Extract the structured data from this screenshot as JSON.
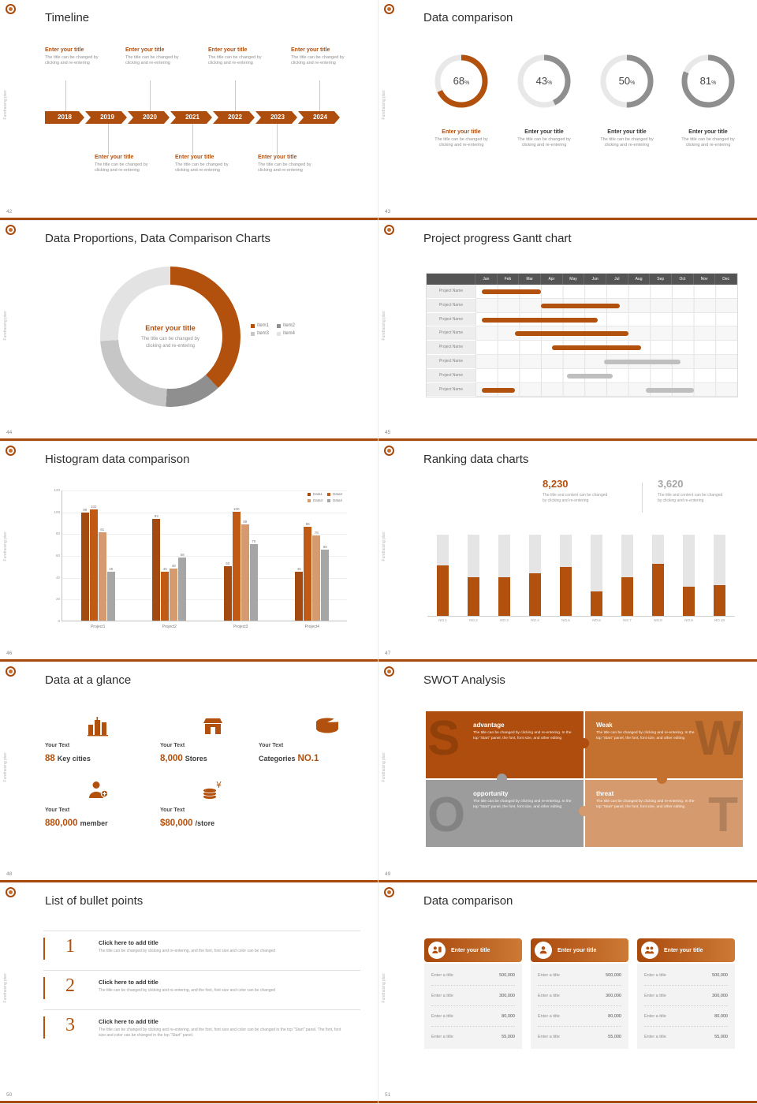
{
  "palette": {
    "accent": "#b2500e",
    "accent_mid": "#c4702f",
    "tan": "#d59a6d",
    "gray": "#8f8f8f",
    "gray_light": "#e6e6e6",
    "header_dark": "#545454"
  },
  "common": {
    "side_label": "Fundraising plan",
    "enter_title": "Enter your title",
    "change_l1": "The title can be changed by",
    "change_l2": "clicking and re-entering",
    "percent_sign": "%"
  },
  "slides": {
    "s42": {
      "number": "42",
      "title": "Timeline",
      "years": [
        "2018",
        "2019",
        "2020",
        "2021",
        "2022",
        "2023",
        "2024"
      ]
    },
    "s43": {
      "number": "43",
      "title": "Data comparison",
      "donuts": [
        {
          "percent": 68,
          "color": "#b2500e",
          "title_color": "#b2500e"
        },
        {
          "percent": 43,
          "color": "#8f8f8f",
          "title_color": "#333333"
        },
        {
          "percent": 50,
          "color": "#8f8f8f",
          "title_color": "#333333"
        },
        {
          "percent": 81,
          "color": "#8f8f8f",
          "title_color": "#333333"
        }
      ]
    },
    "s44": {
      "number": "44",
      "title": "Data Proportions, Data Comparison Charts",
      "chart_data": {
        "type": "pie",
        "items": [
          {
            "label": "Item1",
            "value": 38,
            "color": "#b2500e"
          },
          {
            "label": "Item2",
            "value": 13,
            "color": "#8f8f8f"
          },
          {
            "label": "Item3",
            "value": 23,
            "color": "#c6c6c6"
          },
          {
            "label": "Item4",
            "value": 26,
            "color": "#e3e3e3"
          }
        ]
      }
    },
    "s45": {
      "number": "45",
      "title": "Project progress Gantt chart",
      "row_label": "Project Name",
      "months": [
        "Jan",
        "Feb",
        "Mar",
        "Apr",
        "May",
        "Jun",
        "Jul",
        "Aug",
        "Sep",
        "Oct",
        "Nov",
        "Dec"
      ],
      "rows": [
        {
          "bars": [
            {
              "start": 0.3,
              "end": 3.0,
              "color": "#b2500e"
            }
          ]
        },
        {
          "bars": [
            {
              "start": 3.0,
              "end": 6.6,
              "color": "#b2500e"
            }
          ]
        },
        {
          "bars": [
            {
              "start": 0.3,
              "end": 5.6,
              "color": "#b2500e"
            }
          ]
        },
        {
          "bars": [
            {
              "start": 1.8,
              "end": 7.0,
              "color": "#b2500e"
            }
          ]
        },
        {
          "bars": [
            {
              "start": 3.5,
              "end": 7.6,
              "color": "#b2500e"
            }
          ]
        },
        {
          "bars": [
            {
              "start": 5.9,
              "end": 9.4,
              "color": "#bfbfbf"
            }
          ]
        },
        {
          "bars": [
            {
              "start": 4.2,
              "end": 6.3,
              "color": "#bfbfbf"
            }
          ]
        },
        {
          "bars": [
            {
              "start": 0.3,
              "end": 1.8,
              "color": "#b2500e"
            },
            {
              "start": 7.8,
              "end": 10.0,
              "color": "#bfbfbf"
            }
          ]
        }
      ]
    },
    "s46": {
      "number": "46",
      "title": "Histogram data comparison",
      "chart_data": {
        "type": "bar",
        "categories": [
          "Project1",
          "Project2",
          "Project3",
          "Project4"
        ],
        "series": [
          {
            "name": "Data1",
            "color": "#a24a10",
            "values": [
              99,
              93,
              50,
              45
            ]
          },
          {
            "name": "Data2",
            "color": "#c05a14",
            "values": [
              102,
              45,
              100,
              86
            ]
          },
          {
            "name": "Data3",
            "color": "#d59a6d",
            "values": [
              81,
              48,
              88,
              78
            ]
          },
          {
            "name": "Data4",
            "color": "#a6a6a6",
            "values": [
              45,
              58,
              70,
              65
            ]
          }
        ],
        "ylim": [
          0,
          120
        ],
        "ystep": 20,
        "grid": true,
        "legend_position": "top-right"
      }
    },
    "s47": {
      "number": "47",
      "title": "Ranking data charts",
      "stat1": {
        "value": "8,230",
        "color": "#b2500e",
        "caption_l1": "The title and content can be changed",
        "caption_l2": "by clicking and re-entering"
      },
      "stat2": {
        "value": "3,620",
        "color": "#a6a6a6",
        "caption_l1": "The title and content can be changed",
        "caption_l2": "by clicking and re-entering"
      },
      "chart_data": {
        "type": "bar",
        "categories": [
          "NO.1",
          "NO.2",
          "NO.3",
          "NO.4",
          "NO.5",
          "NO.6",
          "NO.7",
          "NO.8",
          "NO.9",
          "NO.10"
        ],
        "values": [
          62,
          48,
          48,
          52,
          60,
          30,
          48,
          64,
          36,
          38
        ],
        "ylim": [
          0,
          100
        ]
      }
    },
    "s48": {
      "number": "48",
      "title": "Data at a glance",
      "stats": [
        {
          "label": "Your Text",
          "value": "88",
          "unit": "Key cities",
          "icon": "city-icon"
        },
        {
          "label": "Your Text",
          "value": "8,000",
          "unit": "Stores",
          "icon": "store-icon"
        },
        {
          "label": "Your Text",
          "value": "NO.1",
          "unit": "Categories",
          "icon": "categories-icon"
        },
        {
          "label": "Your Text",
          "value": "880,000",
          "unit": "member",
          "icon": "member-icon"
        },
        {
          "label": "Your Text",
          "value": "$80,000",
          "unit": "/store",
          "icon": "coins-icon"
        }
      ]
    },
    "s49": {
      "number": "49",
      "title": "SWOT Analysis",
      "quads": [
        {
          "letter": "S",
          "title": "advantage",
          "color": "#ae4d0d",
          "body": "The title can be changed by clicking and re-entering. In the top \"Start\" panel, the font, font size, and other editing"
        },
        {
          "letter": "W",
          "title": "Weak",
          "color": "#c4702f",
          "body": "The title can be changed by clicking and re-entering. In the top \"Start\" panel, the font, font size, and other editing"
        },
        {
          "letter": "O",
          "title": "opportunity",
          "color": "#9c9c9c",
          "body": "The title can be changed by clicking and re-entering. In the top \"Start\" panel, the font, font size, and other editing"
        },
        {
          "letter": "T",
          "title": "threat",
          "color": "#d59a6d",
          "body": "The title can be changed by clicking and re-entering. In the top \"Start\" panel, the font, font size, and other editing"
        }
      ]
    },
    "s50": {
      "number": "50",
      "title": "List of bullet points",
      "items": [
        {
          "num": "1",
          "title": "Click here to add title",
          "body": "The title can be changed by clicking and re-entering, and the font, font size and color can be changed"
        },
        {
          "num": "2",
          "title": "Click here to add title",
          "body": "The title can be changed by clicking and re-entering, and the font, font size and color can be changed"
        },
        {
          "num": "3",
          "title": "Click here to add title",
          "body": "The title can be changed by clicking and re-entering, and the font, font size and color can be changed in the top \"Start\" panel. The font, font size and color can be changed in the top \"Start\" panel."
        }
      ]
    },
    "s51": {
      "number": "51",
      "title": "Data comparison",
      "cards": [
        {
          "title": "Enter your title",
          "icon": "clipboard-person-icon"
        },
        {
          "title": "Enter your title",
          "icon": "person-icon"
        },
        {
          "title": "Enter your title",
          "icon": "people-icon"
        }
      ],
      "rows": [
        {
          "label": "Enter a title",
          "value": "500,000"
        },
        {
          "label": "Enter a title",
          "value": "300,000"
        },
        {
          "label": "Enter a title",
          "value": "80,000"
        },
        {
          "label": "Enter a title",
          "value": "55,000"
        }
      ]
    }
  }
}
